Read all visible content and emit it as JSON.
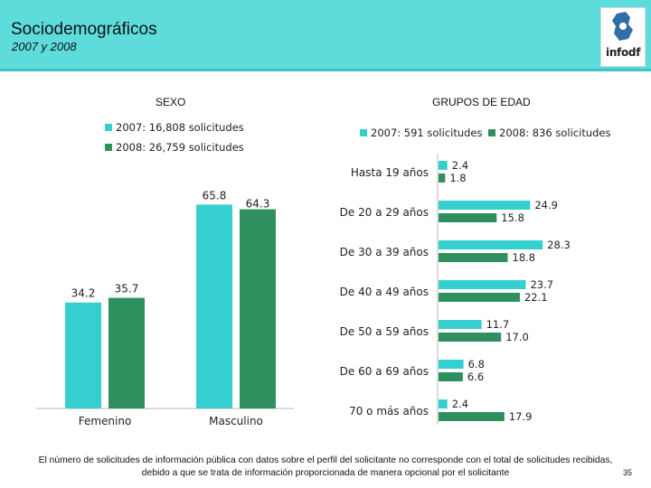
{
  "header": {
    "title": "Sociodemográficos",
    "subtitle": "2007 y 2008",
    "logo_text": "infodf"
  },
  "colors": {
    "teal": "#36cfcf",
    "green": "#2f8f5f",
    "header_bg": "#5edcdc"
  },
  "chart_data": [
    {
      "type": "bar",
      "title": "SEXO",
      "categories": [
        "Femenino",
        "Masculino"
      ],
      "series": [
        {
          "name": "2007: 16,808 solicitudes",
          "values": [
            34.2,
            65.8
          ]
        },
        {
          "name": "2008: 26,759 solicitudes",
          "values": [
            35.7,
            64.3
          ]
        }
      ],
      "ylim": [
        0,
        70
      ],
      "xlabel": "",
      "ylabel": ""
    },
    {
      "type": "bar",
      "orientation": "horizontal",
      "title": "GRUPOS DE EDAD",
      "categories": [
        "Hasta 19 años",
        "De 20 a 29 años",
        "De 30 a 39 años",
        "De 40 a 49 años",
        "De 50 a 59 años",
        "De 60 a 69 años",
        "70 o más años"
      ],
      "series": [
        {
          "name": "2007: 591 solicitudes",
          "values": [
            2.4,
            24.9,
            28.3,
            23.7,
            11.7,
            6.8,
            2.4
          ]
        },
        {
          "name": "2008: 836 solicitudes",
          "values": [
            1.8,
            15.8,
            18.8,
            22.1,
            17.0,
            6.6,
            17.9
          ]
        }
      ],
      "xlim": [
        0,
        30
      ],
      "xlabel": "",
      "ylabel": ""
    }
  ],
  "footnote": "El número de solicitudes de información pública con datos sobre el perfil del solicitante no corresponde con el total de solicitudes recibidas, debido a que se trata de información proporcionada de manera opcional por el solicitante",
  "page_number": "35"
}
